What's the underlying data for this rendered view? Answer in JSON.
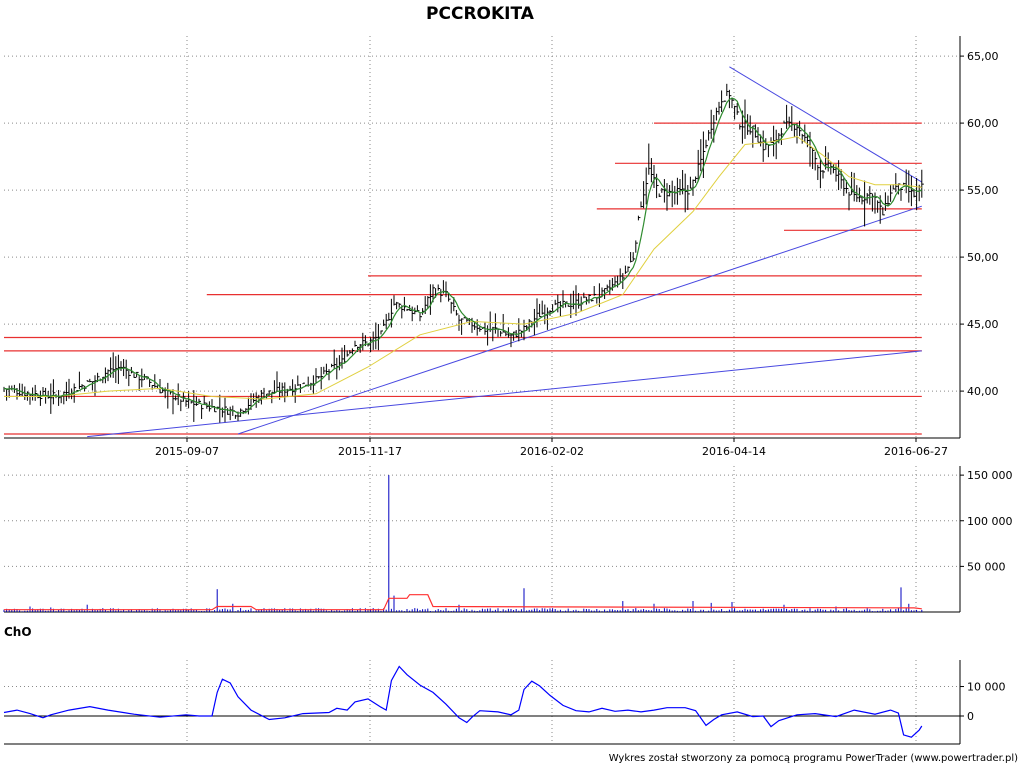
{
  "colors": {
    "candle": "#000000",
    "sma_short": "#2e8b2e",
    "sma_long": "#e0d040",
    "support_resistance": "#e83030",
    "trendline": "#4848e0",
    "volume_bar": "#0000c0",
    "volume_avg": "#ff3030",
    "cho_line": "#0000ff"
  },
  "chart_data": [
    {
      "type": "line",
      "panel": "price",
      "title": "PCCROKITA",
      "x_tick_labels": [
        "2015-09-07",
        "2015-11-17",
        "2016-02-02",
        "2016-04-14",
        "2016-06-27"
      ],
      "y_tick_labels": [
        "40,00",
        "45,00",
        "50,00",
        "55,00",
        "60,00",
        "65,00"
      ],
      "ylim": [
        36.5,
        66.5
      ],
      "grid": true,
      "x_anchor": [
        [
          0,
          40.2
        ],
        [
          10,
          39.8
        ],
        [
          20,
          39.6
        ],
        [
          30,
          40.4
        ],
        [
          35,
          40.8
        ],
        [
          40,
          41.5
        ],
        [
          45,
          41.8
        ],
        [
          50,
          41.2
        ],
        [
          55,
          40.8
        ],
        [
          60,
          40.1
        ],
        [
          70,
          39.2
        ],
        [
          80,
          38.8
        ],
        [
          90,
          38.4
        ],
        [
          95,
          39.2
        ],
        [
          100,
          39.8
        ],
        [
          110,
          40.2
        ],
        [
          120,
          40.8
        ],
        [
          130,
          42.2
        ],
        [
          135,
          43.5
        ],
        [
          140,
          43.6
        ],
        [
          145,
          44.2
        ],
        [
          150,
          46.5
        ],
        [
          155,
          46.2
        ],
        [
          160,
          45.6
        ],
        [
          165,
          47.6
        ],
        [
          170,
          47.2
        ],
        [
          175,
          45.3
        ],
        [
          180,
          45.0
        ],
        [
          185,
          44.6
        ],
        [
          190,
          44.6
        ],
        [
          195,
          44.1
        ],
        [
          200,
          44.6
        ],
        [
          205,
          45.6
        ],
        [
          210,
          46.2
        ],
        [
          220,
          46.6
        ],
        [
          230,
          47.2
        ],
        [
          238,
          48.5
        ],
        [
          242,
          50.0
        ],
        [
          245,
          54.0
        ],
        [
          248,
          56.5
        ],
        [
          252,
          54.8
        ],
        [
          258,
          54.8
        ],
        [
          264,
          55.0
        ],
        [
          268,
          57.2
        ],
        [
          272,
          59.8
        ],
        [
          276,
          61.8
        ],
        [
          279,
          62.2
        ],
        [
          283,
          60.0
        ],
        [
          288,
          59.5
        ],
        [
          292,
          58.2
        ],
        [
          296,
          58.5
        ],
        [
          300,
          59.8
        ],
        [
          305,
          59.8
        ],
        [
          310,
          58.2
        ],
        [
          314,
          56.5
        ],
        [
          318,
          56.8
        ],
        [
          322,
          55.6
        ],
        [
          326,
          54.6
        ],
        [
          330,
          54.4
        ],
        [
          334,
          54.8
        ],
        [
          338,
          53.2
        ],
        [
          342,
          55.2
        ],
        [
          346,
          55.2
        ],
        [
          350,
          54.6
        ],
        [
          353,
          55.2
        ]
      ],
      "sma_long": [
        [
          0,
          39.6
        ],
        [
          20,
          39.6
        ],
        [
          40,
          40.0
        ],
        [
          60,
          40.2
        ],
        [
          80,
          39.6
        ],
        [
          100,
          39.4
        ],
        [
          120,
          39.8
        ],
        [
          140,
          41.8
        ],
        [
          160,
          44.2
        ],
        [
          180,
          45.2
        ],
        [
          200,
          45.0
        ],
        [
          220,
          45.8
        ],
        [
          238,
          47.2
        ],
        [
          250,
          50.6
        ],
        [
          265,
          53.4
        ],
        [
          275,
          56.0
        ],
        [
          285,
          58.4
        ],
        [
          295,
          58.6
        ],
        [
          305,
          59.0
        ],
        [
          315,
          57.6
        ],
        [
          325,
          56.0
        ],
        [
          335,
          55.4
        ],
        [
          345,
          55.4
        ],
        [
          353,
          55.2
        ]
      ],
      "support_lines": [
        [
          0,
          353,
          36.8
        ],
        [
          0,
          353,
          39.6
        ],
        [
          0,
          353,
          43.0
        ],
        [
          0,
          353,
          44.0
        ],
        [
          78,
          353,
          47.2
        ],
        [
          140,
          353,
          48.6
        ],
        [
          228,
          353,
          53.6
        ],
        [
          235,
          353,
          57.0
        ],
        [
          250,
          353,
          60.0
        ],
        [
          300,
          353,
          52.0
        ]
      ],
      "trendlines": [
        [
          [
            32,
            36.6
          ],
          [
            353,
            43.0
          ]
        ],
        [
          [
            90,
            36.8
          ],
          [
            353,
            53.8
          ]
        ],
        [
          [
            279,
            64.2
          ],
          [
            353,
            55.6
          ]
        ]
      ]
    },
    {
      "type": "bar",
      "panel": "volume",
      "y_tick_labels": [
        "50 000",
        "100 000",
        "150 000"
      ],
      "ylim": [
        0,
        160000
      ],
      "grid": true,
      "spikes": [
        [
          10,
          6000
        ],
        [
          18,
          5000
        ],
        [
          32,
          8000
        ],
        [
          60,
          3000
        ],
        [
          78,
          4000
        ],
        [
          82,
          25000
        ],
        [
          88,
          9000
        ],
        [
          148,
          150000
        ],
        [
          150,
          18000
        ],
        [
          175,
          8000
        ],
        [
          200,
          26000
        ],
        [
          238,
          12000
        ],
        [
          250,
          9000
        ],
        [
          265,
          12000
        ],
        [
          272,
          10000
        ],
        [
          280,
          11000
        ],
        [
          300,
          8000
        ],
        [
          320,
          6000
        ],
        [
          345,
          27000
        ],
        [
          348,
          9000
        ]
      ],
      "avg_line": [
        [
          0,
          2500
        ],
        [
          80,
          2500
        ],
        [
          82,
          6000
        ],
        [
          95,
          6000
        ],
        [
          97,
          2500
        ],
        [
          146,
          2500
        ],
        [
          148,
          15000
        ],
        [
          155,
          15000
        ],
        [
          156,
          19000
        ],
        [
          163,
          19000
        ],
        [
          165,
          6000
        ],
        [
          350,
          4500
        ],
        [
          353,
          3500
        ]
      ]
    },
    {
      "type": "line",
      "panel": "oscillator",
      "title": "ChO",
      "y_tick_labels": [
        "0",
        "10 000"
      ],
      "ylim": [
        -9500,
        19000
      ],
      "grid": true,
      "values": [
        [
          0,
          1200
        ],
        [
          5,
          2000
        ],
        [
          10,
          800
        ],
        [
          15,
          -600
        ],
        [
          18,
          400
        ],
        [
          25,
          2000
        ],
        [
          33,
          3200
        ],
        [
          40,
          2000
        ],
        [
          50,
          600
        ],
        [
          60,
          -400
        ],
        [
          70,
          400
        ],
        [
          75,
          0
        ],
        [
          80,
          0
        ],
        [
          82,
          8000
        ],
        [
          84,
          12500
        ],
        [
          87,
          11200
        ],
        [
          90,
          6500
        ],
        [
          95,
          2000
        ],
        [
          102,
          -1200
        ],
        [
          108,
          -600
        ],
        [
          115,
          800
        ],
        [
          125,
          1200
        ],
        [
          128,
          2600
        ],
        [
          132,
          2000
        ],
        [
          135,
          4800
        ],
        [
          140,
          5800
        ],
        [
          145,
          3000
        ],
        [
          147,
          2000
        ],
        [
          149,
          12000
        ],
        [
          152,
          16800
        ],
        [
          155,
          14000
        ],
        [
          160,
          10500
        ],
        [
          165,
          8000
        ],
        [
          170,
          4000
        ],
        [
          175,
          -600
        ],
        [
          178,
          -2200
        ],
        [
          180,
          -400
        ],
        [
          183,
          1800
        ],
        [
          190,
          1400
        ],
        [
          195,
          400
        ],
        [
          198,
          2000
        ],
        [
          200,
          9000
        ],
        [
          203,
          11800
        ],
        [
          206,
          10200
        ],
        [
          210,
          7000
        ],
        [
          215,
          3600
        ],
        [
          220,
          1800
        ],
        [
          225,
          1400
        ],
        [
          230,
          2600
        ],
        [
          235,
          1600
        ],
        [
          240,
          2000
        ],
        [
          245,
          1400
        ],
        [
          250,
          2000
        ],
        [
          255,
          2800
        ],
        [
          262,
          2800
        ],
        [
          266,
          1800
        ],
        [
          270,
          -3200
        ],
        [
          273,
          -1200
        ],
        [
          276,
          400
        ],
        [
          282,
          1400
        ],
        [
          288,
          -200
        ],
        [
          292,
          0
        ],
        [
          295,
          -3600
        ],
        [
          298,
          -1600
        ],
        [
          305,
          400
        ],
        [
          312,
          800
        ],
        [
          320,
          -200
        ],
        [
          327,
          2000
        ],
        [
          335,
          600
        ],
        [
          341,
          2000
        ],
        [
          344,
          1000
        ],
        [
          346,
          -6400
        ],
        [
          349,
          -7200
        ],
        [
          352,
          -4800
        ],
        [
          353,
          -3400
        ]
      ]
    }
  ],
  "footer": {
    "credit": "Wykres został stworzony za pomocą programu PowerTrader (www.powertrader.pl)"
  }
}
